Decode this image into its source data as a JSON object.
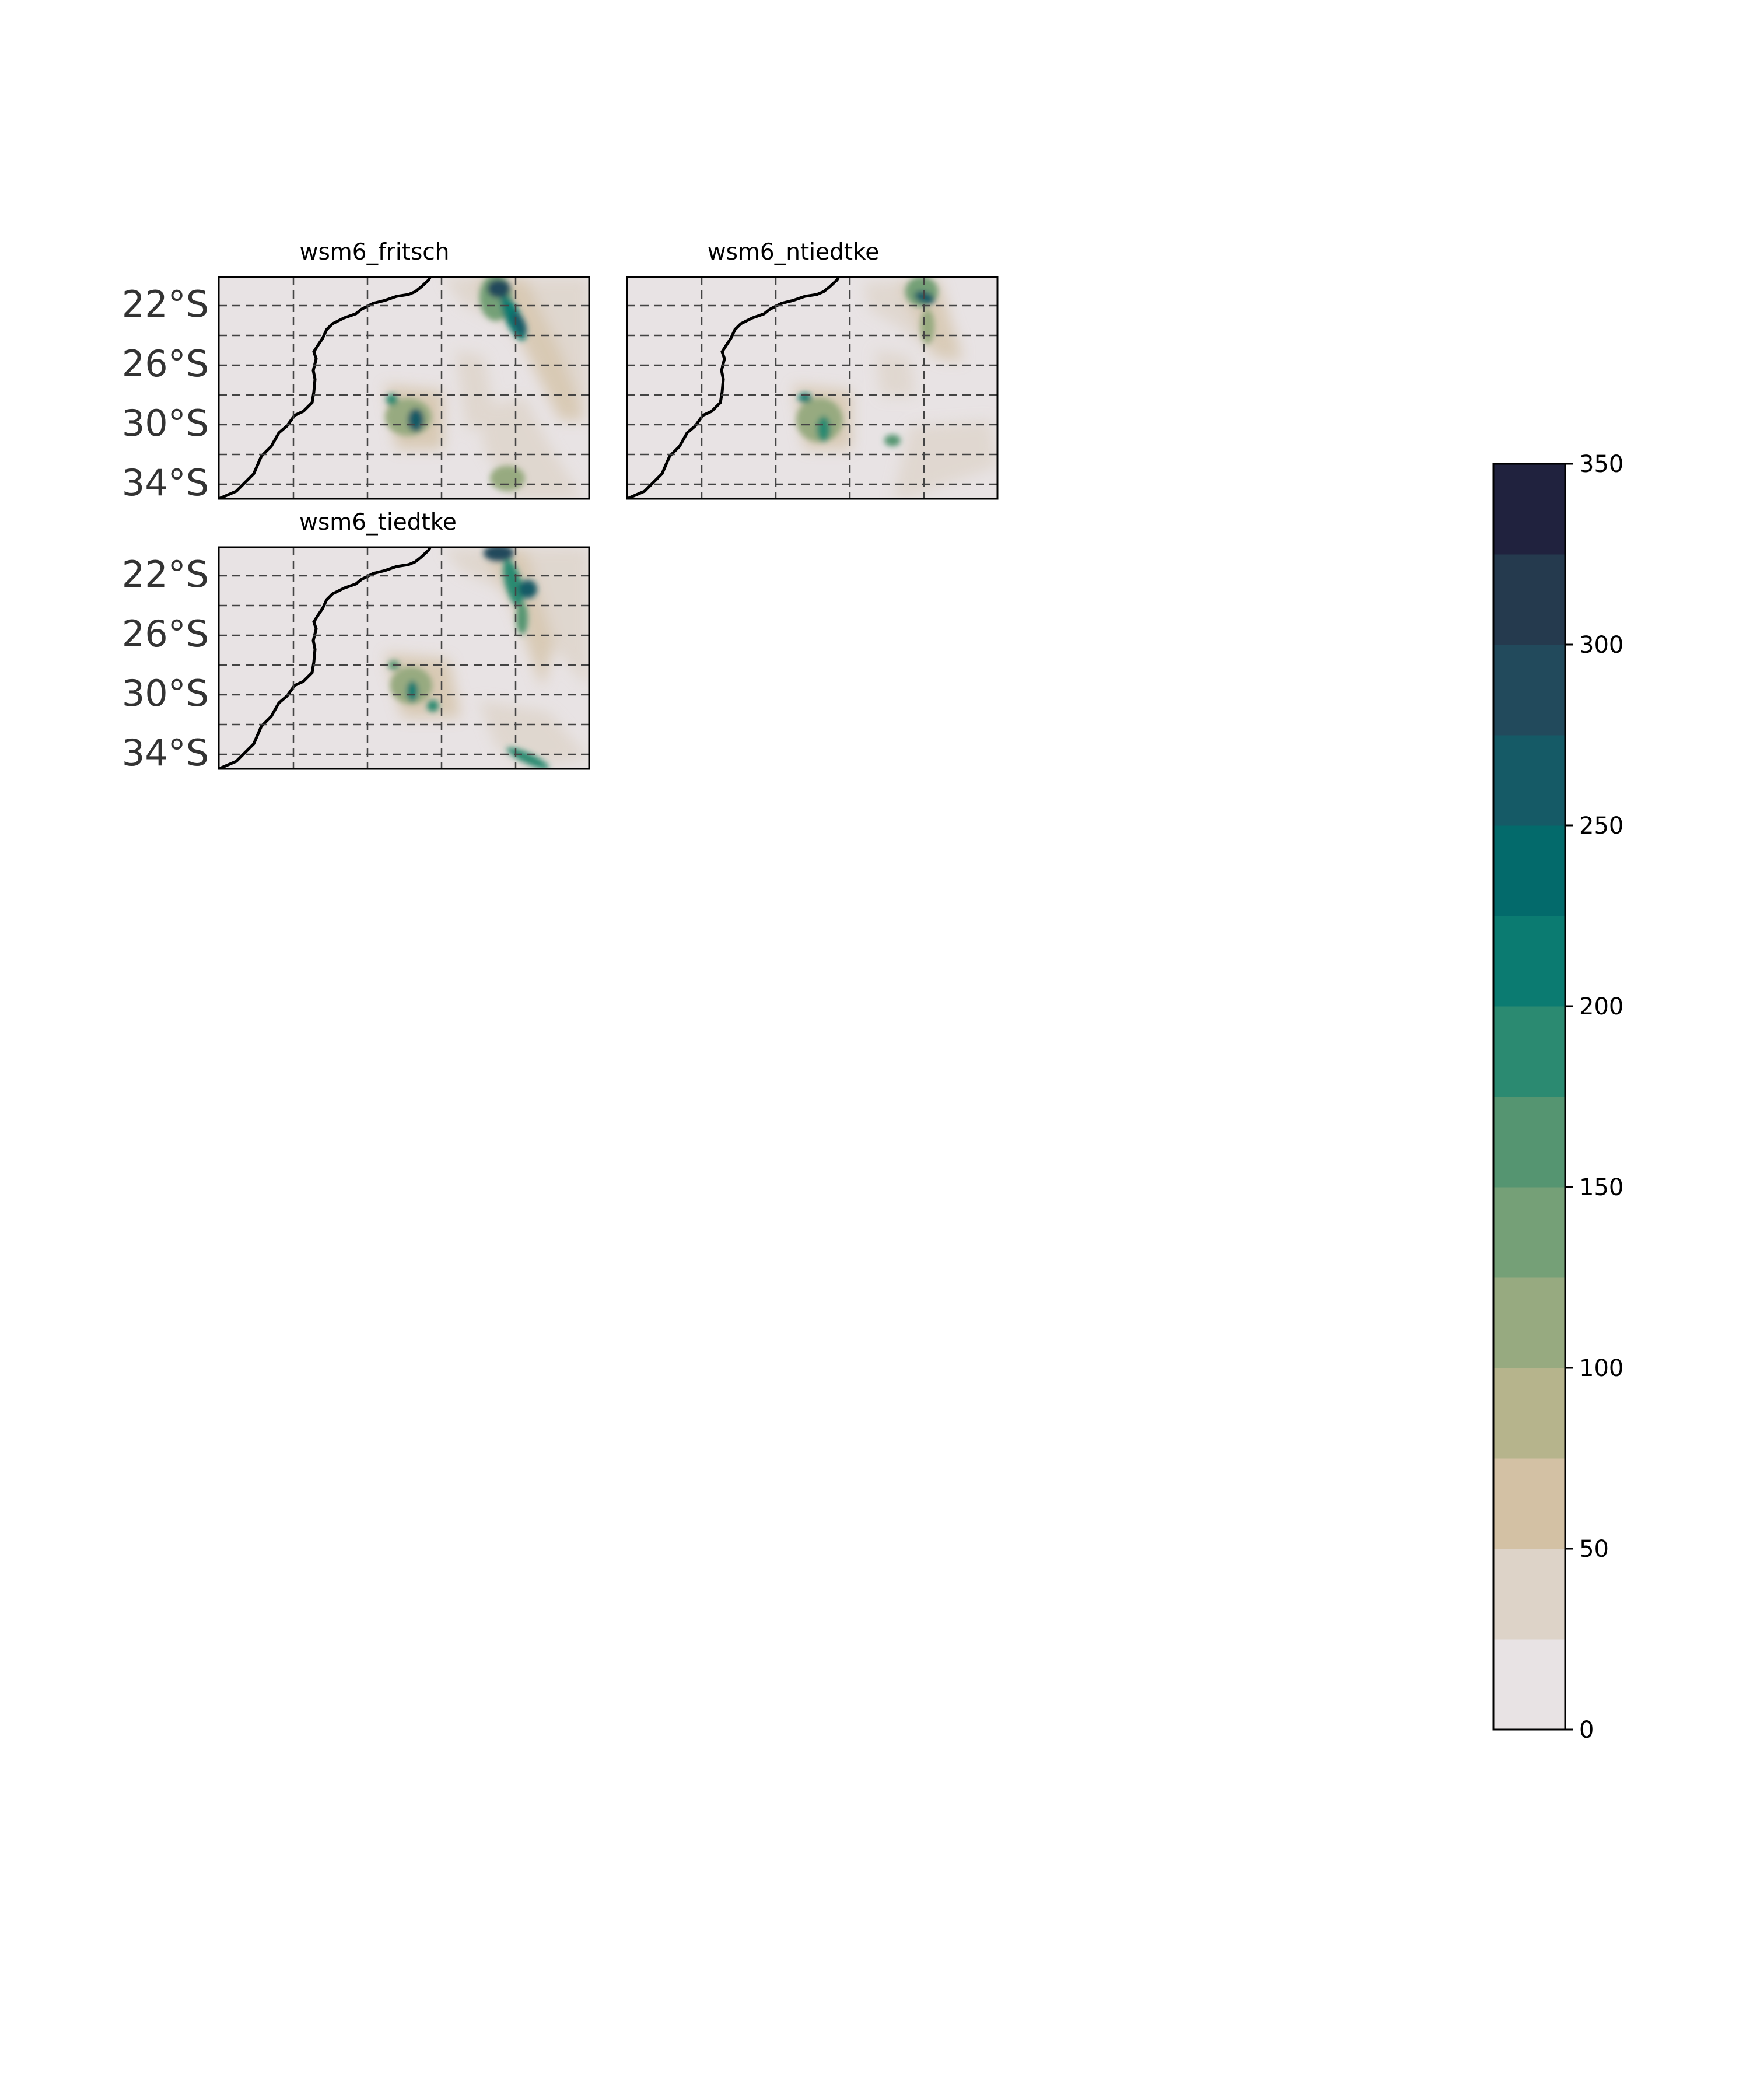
{
  "panels": [
    {
      "id": "fritsch",
      "title": "wsm6_fritsch",
      "show_lat_labels": true
    },
    {
      "id": "ntiedtke",
      "title": "wsm6_ntiedtke",
      "show_lat_labels": false
    },
    {
      "id": "tiedtke",
      "title": "wsm6_tiedtke",
      "show_lat_labels": true
    }
  ],
  "lat_labels": [
    "22°S",
    "26°S",
    "30°S",
    "34°S"
  ],
  "colorbar": {
    "ticks": [
      "0",
      "50",
      "100",
      "150",
      "200",
      "250",
      "300",
      "350"
    ],
    "levels": [
      0,
      25,
      50,
      75,
      100,
      125,
      150,
      175,
      200,
      225,
      250,
      275,
      300,
      325,
      350
    ],
    "colors": [
      "#e8e3e4",
      "#ddd3c8",
      "#d3c1a4",
      "#b6b48c",
      "#97aa80",
      "#75a077",
      "#559571",
      "#2b8a71",
      "#0b7b71",
      "#036a6b",
      "#155a66",
      "#224a5c",
      "#253a4e",
      "#20223e"
    ]
  },
  "colors": {
    "ocean": "#e8e3e4",
    "coast": "#000000",
    "grid": "#444444",
    "label": "#333333"
  }
}
